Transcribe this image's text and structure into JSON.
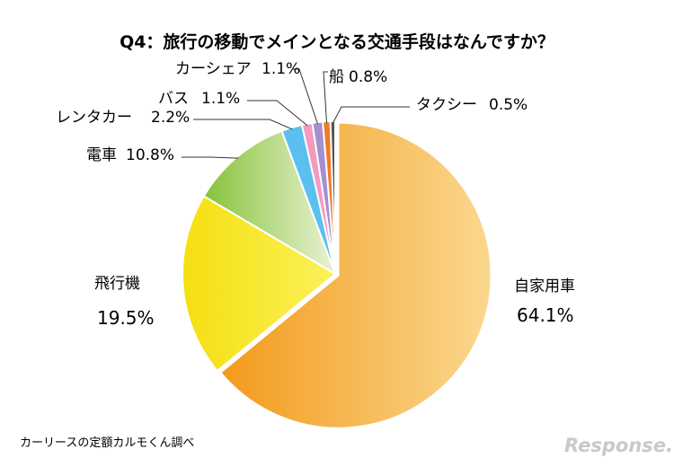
{
  "chart_data": {
    "type": "pie",
    "title": "Q4：旅行の移動でメインとなる交通手段はなんですか？",
    "slices": [
      {
        "label": "自家用車",
        "value": 64.1,
        "value_label": "64.1%",
        "color": "#f5a623"
      },
      {
        "label": "飛行機",
        "value": 19.5,
        "value_label": "19.5%",
        "color": "#f8e81c"
      },
      {
        "label": "電車",
        "value": 10.8,
        "value_label": "10.8%",
        "color": "#8cc63e"
      },
      {
        "label": "レンタカー",
        "value": 2.2,
        "value_label": "2.2%",
        "color": "#5bc0f0"
      },
      {
        "label": "バス",
        "value": 1.1,
        "value_label": "1.1%",
        "color": "#f29ac0"
      },
      {
        "label": "カーシェア",
        "value": 1.1,
        "value_label": "1.1%",
        "color": "#a58fcf"
      },
      {
        "label": "船",
        "value": 0.8,
        "value_label": "0.8%",
        "color": "#f07a28"
      },
      {
        "label": "タクシー",
        "value": 0.5,
        "value_label": "0.5%",
        "color": "#555555"
      }
    ],
    "source": "カーリースの定額カルモくん調べ"
  },
  "watermark": "Response."
}
